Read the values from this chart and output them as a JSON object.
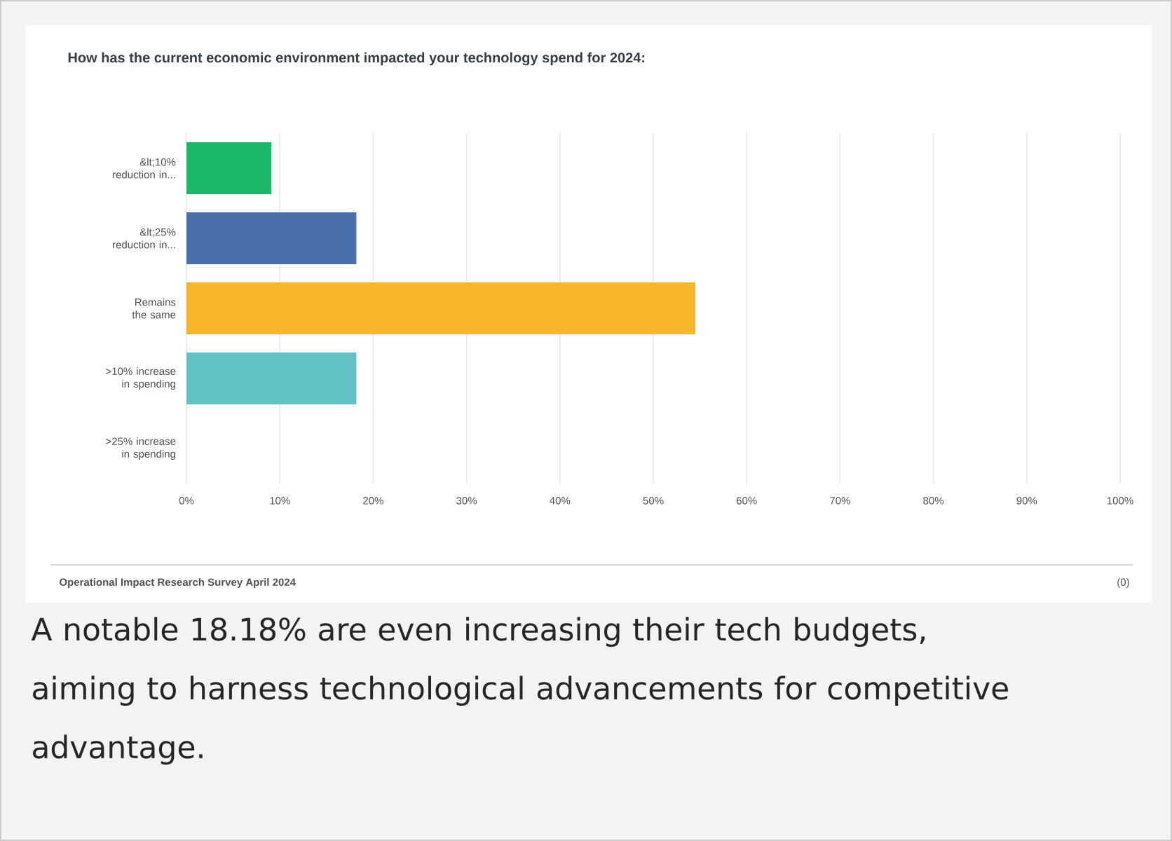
{
  "chart_data": {
    "type": "bar",
    "orientation": "horizontal",
    "title": "How has the current economic environment impacted your technology spend for 2024:",
    "categories": [
      "&lt;10% reduction in...",
      "&lt;25% reduction in...",
      "Remains the same",
      ">10% increase in spending",
      ">25% increase in spending"
    ],
    "values": [
      9.1,
      18.2,
      54.5,
      18.2,
      0
    ],
    "colors": [
      "#1cb86a",
      "#4a70ab",
      "#f7b52c",
      "#62c1c5",
      "#9ea3ad"
    ],
    "xlim": [
      0,
      100
    ],
    "xticks": [
      {
        "value": 0,
        "label": "0%"
      },
      {
        "value": 10,
        "label": "10%"
      },
      {
        "value": 20,
        "label": "20%"
      },
      {
        "value": 30,
        "label": "30%"
      },
      {
        "value": 40,
        "label": "40%"
      },
      {
        "value": 50,
        "label": "50%"
      },
      {
        "value": 60,
        "label": "60%"
      },
      {
        "value": 70,
        "label": "70%"
      },
      {
        "value": 80,
        "label": "80%"
      },
      {
        "value": 90,
        "label": "90%"
      },
      {
        "value": 100,
        "label": "100%"
      }
    ],
    "grid": "x",
    "annotations": [
      "Operational Impact Research Survey April 2024",
      "(0)",
      "A notable 18.18% are even increasing their tech budgets, aiming to harness technological advancements for competitive advantage."
    ]
  }
}
